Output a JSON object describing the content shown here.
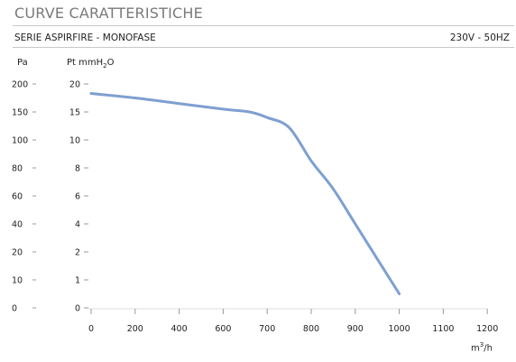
{
  "header": {
    "title": "CURVE CARATTERISTICHE",
    "series_label": "SERIE ASPIRFIRE  -  MONOFASE",
    "supply_label": "230V - 50HZ"
  },
  "chart_data": {
    "type": "line",
    "left_axis_unit": "Pa",
    "right_axis_unit": "Pt mmH",
    "right_axis_unit_sub": "2",
    "right_axis_unit_tail": "O",
    "x_unit": "m",
    "x_unit_sup": "3",
    "x_unit_tail": "/h",
    "x_ticks": [
      0,
      200,
      400,
      600,
      700,
      800,
      900,
      1000,
      1100,
      1200
    ],
    "pa_ticks": [
      200,
      150,
      100,
      80,
      60,
      40,
      20,
      10,
      0
    ],
    "mmh2o_ticks": [
      20,
      15,
      10,
      8,
      6,
      4,
      2,
      1,
      0
    ],
    "series": [
      {
        "color": "#7f9fd0",
        "points": [
          {
            "x": 0,
            "y": 18.3
          },
          {
            "x": 200,
            "y": 17.5
          },
          {
            "x": 400,
            "y": 16.5
          },
          {
            "x": 600,
            "y": 15.5
          },
          {
            "x": 660,
            "y": 15.0
          },
          {
            "x": 700,
            "y": 14.0
          },
          {
            "x": 750,
            "y": 12.2
          },
          {
            "x": 800,
            "y": 8.5
          },
          {
            "x": 850,
            "y": 6.5
          },
          {
            "x": 900,
            "y": 4.0
          },
          {
            "x": 1000,
            "y": 0.5
          }
        ]
      }
    ]
  }
}
